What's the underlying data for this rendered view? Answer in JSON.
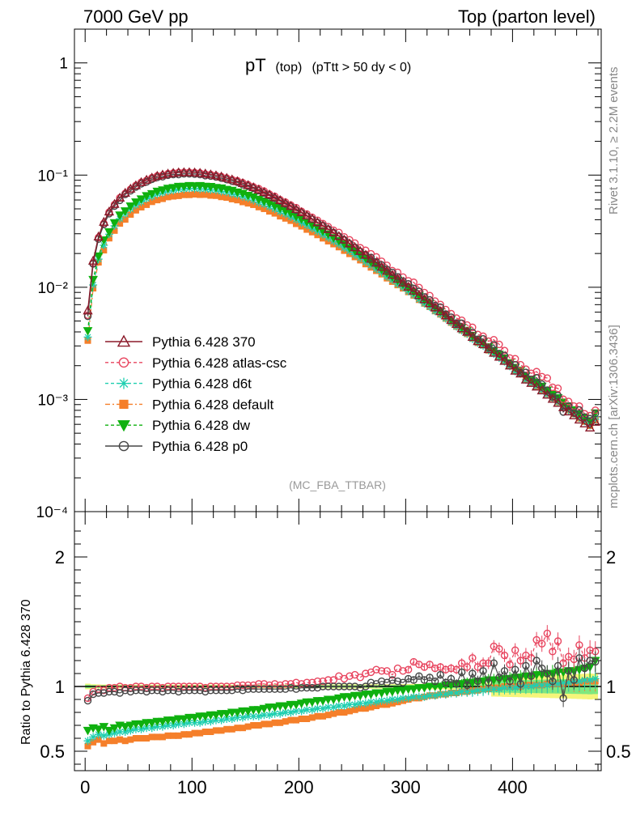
{
  "header": {
    "energy_label": "7000 GeV pp",
    "process_label": "Top (parton level)"
  },
  "side_labels": {
    "rivet": "Rivet 3.1.10, ≥ 2.2M events",
    "mcplots": "mcplots.cern.ch [arXiv:1306.3436]"
  },
  "plot_title": {
    "main": "pT",
    "sub1": "(top)",
    "sub2": "(pTtt > 50 dy < 0)"
  },
  "watermark": "(MC_FBA_TTBAR)",
  "ratio_ylabel": "Ratio to Pythia 6.428 370",
  "colors": {
    "p370": "#8b1a2a",
    "atlas": "#e8455f",
    "d6t": "#1fcfb0",
    "default": "#f57f2a",
    "dw": "#0fb00f",
    "p0": "#474747",
    "band_green": "#7fe87f",
    "band_yellow": "#f5f57a"
  },
  "chart_data": {
    "type": "line",
    "main_panel": {
      "yscale": "log",
      "ylim": [
        0.0001,
        2
      ],
      "yticks": [
        {
          "label": "1",
          "value": 1
        },
        {
          "label": "10⁻¹",
          "value": 0.1
        },
        {
          "label": "10⁻²",
          "value": 0.01
        },
        {
          "label": "10⁻³",
          "value": 0.001
        },
        {
          "label": "10⁻⁴",
          "value": 0.0001
        }
      ]
    },
    "ratio_panel": {
      "ylim": [
        0.35,
        2.35
      ],
      "yticks": [
        {
          "label": "2",
          "value": 2
        },
        {
          "label": "1",
          "value": 1
        },
        {
          "label": "0.5",
          "value": 0.5
        }
      ]
    },
    "xlim": [
      -10,
      483
    ],
    "xticks": [
      {
        "label": "0",
        "value": 0
      },
      {
        "label": "100",
        "value": 100
      },
      {
        "label": "200",
        "value": 200
      },
      {
        "label": "300",
        "value": 300
      },
      {
        "label": "400",
        "value": 400
      }
    ],
    "x": [
      2.5,
      7.5,
      12.5,
      17.5,
      22.5,
      27.5,
      32.5,
      37.5,
      42.5,
      47.5,
      52.5,
      57.5,
      62.5,
      67.5,
      72.5,
      77.5,
      82.5,
      87.5,
      92.5,
      97.5,
      102.5,
      107.5,
      112.5,
      117.5,
      122.5,
      127.5,
      132.5,
      137.5,
      142.5,
      147.5,
      152.5,
      157.5,
      162.5,
      167.5,
      172.5,
      177.5,
      182.5,
      187.5,
      192.5,
      197.5,
      202.5,
      207.5,
      212.5,
      217.5,
      222.5,
      227.5,
      232.5,
      237.5,
      242.5,
      247.5,
      252.5,
      257.5,
      262.5,
      267.5,
      272.5,
      277.5,
      282.5,
      287.5,
      292.5,
      297.5,
      302.5,
      307.5,
      312.5,
      317.5,
      322.5,
      327.5,
      332.5,
      337.5,
      342.5,
      347.5,
      352.5,
      357.5,
      362.5,
      367.5,
      372.5,
      377.5,
      382.5,
      387.5,
      392.5,
      397.5,
      402.5,
      407.5,
      412.5,
      417.5,
      422.5,
      427.5,
      432.5,
      437.5,
      442.5,
      447.5,
      452.5,
      457.5,
      462.5,
      467.5,
      472.5,
      477.5
    ],
    "series": [
      {
        "key": "p370",
        "name": "Pythia 6.428 370",
        "marker": "triangle-open",
        "dash": "solid",
        "is_reference": true,
        "values": [
          0.0062,
          0.0172,
          0.0283,
          0.0382,
          0.0472,
          0.0552,
          0.0628,
          0.0693,
          0.0755,
          0.0809,
          0.0862,
          0.0907,
          0.0947,
          0.0982,
          0.1008,
          0.1028,
          0.1043,
          0.1054,
          0.1058,
          0.1058,
          0.1053,
          0.1044,
          0.103,
          0.1012,
          0.0992,
          0.0968,
          0.0941,
          0.0912,
          0.088,
          0.0847,
          0.0812,
          0.0777,
          0.0741,
          0.0705,
          0.0669,
          0.0633,
          0.0597,
          0.0563,
          0.053,
          0.0497,
          0.0466,
          0.0436,
          0.0408,
          0.038,
          0.0355,
          0.033,
          0.0307,
          0.0285,
          0.0265,
          0.0245,
          0.0227,
          0.021,
          0.0194,
          0.0179,
          0.0165,
          0.0152,
          0.014,
          0.0129,
          0.0119,
          0.011,
          0.0101,
          0.0093,
          0.0085,
          0.0078,
          0.0072,
          0.0066,
          0.0061,
          0.0056,
          0.0051,
          0.0047,
          0.0043,
          0.004,
          0.0036,
          0.0033,
          0.0031,
          0.0028,
          0.0026,
          0.0024,
          0.0022,
          0.002,
          0.0018,
          0.0017,
          0.0015,
          0.0014,
          0.0013,
          0.0012,
          0.0011,
          0.00101,
          0.00093,
          0.00085,
          0.00078,
          0.00072,
          0.00066,
          0.00061,
          0.00056,
          0.00063
        ],
        "ratio": null
      },
      {
        "key": "atlas",
        "name": "Pythia 6.428 atlas-csc",
        "marker": "circle-open",
        "dash": "4,3",
        "ratio": [
          0.91,
          0.96,
          0.98,
          0.97,
          0.99,
          0.99,
          1.0,
          0.99,
          0.99,
          1.0,
          1.0,
          0.99,
          1.0,
          1.0,
          0.99,
          1.0,
          1.0,
          1.0,
          1.0,
          1.0,
          1.0,
          1.0,
          0.99,
          1.0,
          1.0,
          1.0,
          1.0,
          1.0,
          1.01,
          1.01,
          1.01,
          1.01,
          1.02,
          1.02,
          1.01,
          1.02,
          1.01,
          1.02,
          1.02,
          1.03,
          1.02,
          1.03,
          1.03,
          1.04,
          1.04,
          1.05,
          1.05,
          1.08,
          1.06,
          1.08,
          1.09,
          1.07,
          1.1,
          1.11,
          1.13,
          1.12,
          1.12,
          1.09,
          1.14,
          1.12,
          1.13,
          1.19,
          1.17,
          1.15,
          1.17,
          1.14,
          1.15,
          1.13,
          1.14,
          1.13,
          1.18,
          1.15,
          1.22,
          1.15,
          1.18,
          1.18,
          1.31,
          1.29,
          1.24,
          1.17,
          1.28,
          1.2,
          1.24,
          1.22,
          1.36,
          1.33,
          1.41,
          1.27,
          1.35,
          1.18,
          1.23,
          1.21,
          1.32,
          1.22,
          1.28,
          1.27
        ]
      },
      {
        "key": "d6t",
        "name": "Pythia 6.428 d6t",
        "marker": "star",
        "dash": "4,3",
        "ratio": [
          0.58,
          0.61,
          0.63,
          0.62,
          0.63,
          0.64,
          0.65,
          0.65,
          0.66,
          0.67,
          0.67,
          0.68,
          0.68,
          0.69,
          0.69,
          0.7,
          0.7,
          0.71,
          0.71,
          0.72,
          0.72,
          0.72,
          0.73,
          0.73,
          0.74,
          0.74,
          0.75,
          0.75,
          0.76,
          0.76,
          0.77,
          0.77,
          0.77,
          0.78,
          0.78,
          0.79,
          0.79,
          0.8,
          0.8,
          0.81,
          0.81,
          0.82,
          0.82,
          0.83,
          0.83,
          0.84,
          0.84,
          0.85,
          0.85,
          0.86,
          0.86,
          0.87,
          0.87,
          0.88,
          0.88,
          0.89,
          0.89,
          0.9,
          0.9,
          0.91,
          0.91,
          0.92,
          0.92,
          0.92,
          0.93,
          0.93,
          0.94,
          0.94,
          0.95,
          0.95,
          0.96,
          0.96,
          0.96,
          0.97,
          0.97,
          0.98,
          0.98,
          0.98,
          0.99,
          0.99,
          0.99,
          1.0,
          1.0,
          1.0,
          1.01,
          1.01,
          1.01,
          1.02,
          1.02,
          1.03,
          1.03,
          1.04,
          1.04,
          1.05,
          1.05,
          1.06
        ]
      },
      {
        "key": "default",
        "name": "Pythia 6.428 default",
        "marker": "square",
        "dash": "6,3,2,3",
        "ratio": [
          0.54,
          0.57,
          0.59,
          0.56,
          0.58,
          0.58,
          0.59,
          0.58,
          0.59,
          0.6,
          0.6,
          0.6,
          0.61,
          0.61,
          0.61,
          0.62,
          0.62,
          0.62,
          0.63,
          0.63,
          0.64,
          0.64,
          0.65,
          0.65,
          0.66,
          0.66,
          0.67,
          0.67,
          0.68,
          0.68,
          0.69,
          0.7,
          0.7,
          0.71,
          0.71,
          0.72,
          0.72,
          0.73,
          0.74,
          0.74,
          0.75,
          0.75,
          0.76,
          0.77,
          0.77,
          0.78,
          0.79,
          0.8,
          0.8,
          0.81,
          0.82,
          0.83,
          0.83,
          0.84,
          0.85,
          0.86,
          0.86,
          0.87,
          0.88,
          0.89,
          0.9,
          0.91,
          0.91,
          0.92,
          0.93,
          0.93,
          0.94,
          0.94,
          0.95,
          0.95,
          0.96,
          0.96,
          0.97,
          0.97,
          0.98,
          0.98,
          0.99,
          0.99,
          1.0,
          1.0,
          1.0,
          1.0,
          1.01,
          1.01,
          1.01,
          1.01,
          1.02,
          1.02,
          1.02,
          1.02,
          1.03,
          1.03,
          1.03,
          1.04,
          1.04,
          1.04
        ]
      },
      {
        "key": "dw",
        "name": "Pythia 6.428 dw",
        "marker": "triangle-down",
        "dash": "4,3",
        "ratio": [
          0.66,
          0.68,
          0.67,
          0.69,
          0.66,
          0.68,
          0.7,
          0.69,
          0.7,
          0.71,
          0.71,
          0.72,
          0.72,
          0.73,
          0.73,
          0.74,
          0.74,
          0.75,
          0.75,
          0.76,
          0.76,
          0.77,
          0.77,
          0.78,
          0.78,
          0.79,
          0.79,
          0.8,
          0.8,
          0.81,
          0.81,
          0.82,
          0.82,
          0.83,
          0.84,
          0.84,
          0.85,
          0.85,
          0.86,
          0.86,
          0.87,
          0.88,
          0.88,
          0.89,
          0.89,
          0.9,
          0.9,
          0.91,
          0.92,
          0.92,
          0.93,
          0.93,
          0.94,
          0.94,
          0.95,
          0.95,
          0.96,
          0.96,
          0.97,
          0.97,
          0.98,
          0.98,
          0.99,
          0.99,
          1.0,
          1.0,
          1.0,
          1.01,
          1.01,
          1.02,
          1.02,
          1.03,
          1.03,
          1.04,
          1.04,
          1.05,
          1.05,
          1.05,
          1.06,
          1.06,
          1.07,
          1.07,
          1.08,
          1.08,
          1.09,
          1.09,
          1.1,
          1.1,
          1.11,
          1.11,
          1.12,
          1.12,
          1.13,
          1.14,
          1.15,
          1.2
        ]
      },
      {
        "key": "p0",
        "name": "Pythia 6.428 p0",
        "marker": "circle-open",
        "dash": "solid",
        "ratio": [
          0.89,
          0.94,
          0.95,
          0.95,
          0.96,
          0.96,
          0.95,
          0.97,
          0.96,
          0.97,
          0.97,
          0.96,
          0.97,
          0.97,
          0.96,
          0.97,
          0.97,
          0.96,
          0.97,
          0.97,
          0.97,
          0.97,
          0.96,
          0.97,
          0.97,
          0.97,
          0.97,
          0.97,
          0.98,
          0.97,
          0.98,
          0.98,
          0.98,
          0.98,
          0.98,
          0.98,
          0.98,
          0.98,
          0.99,
          0.98,
          0.99,
          0.99,
          0.99,
          0.99,
          1.0,
          1.0,
          1.0,
          1.0,
          1.0,
          1.0,
          1.0,
          0.99,
          1.0,
          1.03,
          1.02,
          1.04,
          1.03,
          1.05,
          1.04,
          1.03,
          1.06,
          1.05,
          1.08,
          1.05,
          1.07,
          1.04,
          1.09,
          1.03,
          1.06,
          1.02,
          1.11,
          1.01,
          1.1,
          1.04,
          1.12,
          1.03,
          1.18,
          1.07,
          1.12,
          1.04,
          1.13,
          1.02,
          1.16,
          1.08,
          1.2,
          1.14,
          1.1,
          1.04,
          1.16,
          0.91,
          1.12,
          1.05,
          1.22,
          1.14,
          1.2,
          1.19
        ]
      }
    ]
  }
}
